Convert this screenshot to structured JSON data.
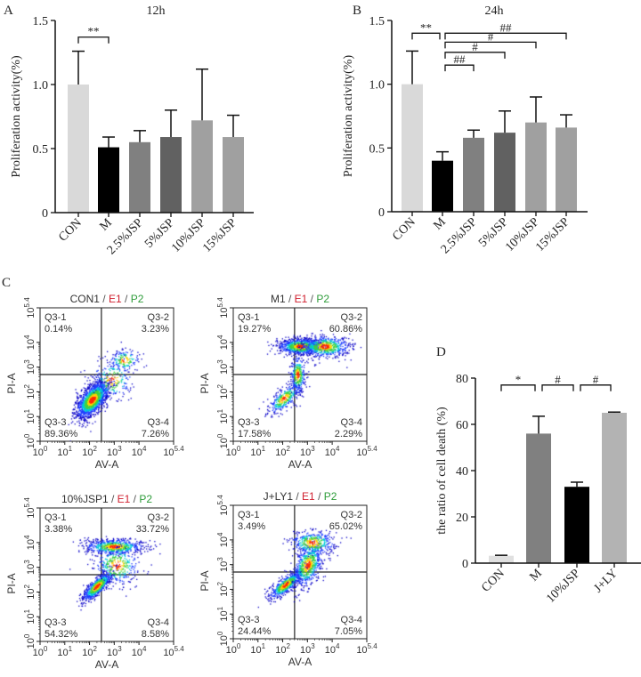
{
  "chart_data": [
    {
      "panel": "A",
      "type": "bar",
      "title": "12h",
      "ylabel": "Proliferation activity(%)",
      "ylim": [
        0,
        1.5
      ],
      "yticks": [
        "0",
        "0.5",
        "1.0",
        "1.5"
      ],
      "categories": [
        "CON",
        "M",
        "2.5%JSP",
        "5%JSP",
        "10%JSP",
        "15%JSP"
      ],
      "values": [
        1.0,
        0.51,
        0.55,
        0.59,
        0.72,
        0.59
      ],
      "error_upper": [
        1.26,
        0.59,
        0.64,
        0.8,
        1.12,
        0.76
      ],
      "colors": [
        "#d9d9d9",
        "#000000",
        "#808080",
        "#616161",
        "#a0a0a0",
        "#a0a0a0"
      ],
      "significance": [
        {
          "from": 0,
          "to": 1,
          "label": "**",
          "y": 1.37
        }
      ]
    },
    {
      "panel": "B",
      "type": "bar",
      "title": "24h",
      "ylabel": "Proliferation activity(%)",
      "ylim": [
        0,
        1.5
      ],
      "yticks": [
        "0",
        "0.5",
        "1.0",
        "1.5"
      ],
      "categories": [
        "CON",
        "M",
        "2.5%JSP",
        "5%JSP",
        "10%JSP",
        "15%JSP"
      ],
      "values": [
        1.0,
        0.4,
        0.58,
        0.62,
        0.7,
        0.66
      ],
      "error_upper": [
        1.26,
        0.47,
        0.64,
        0.79,
        0.9,
        0.76
      ],
      "colors": [
        "#d9d9d9",
        "#000000",
        "#808080",
        "#616161",
        "#a0a0a0",
        "#a0a0a0"
      ],
      "significance": [
        {
          "from": 0,
          "to": 1,
          "label": "**",
          "y": 1.4
        },
        {
          "from": 1,
          "to": 5,
          "label": "##",
          "y": 1.4
        },
        {
          "from": 1,
          "to": 4,
          "label": "#",
          "y": 1.33
        },
        {
          "from": 1,
          "to": 3,
          "label": "#",
          "y": 1.25
        },
        {
          "from": 1,
          "to": 2,
          "label": "##",
          "y": 1.15
        }
      ]
    },
    {
      "panel": "D",
      "type": "bar",
      "title": "",
      "ylabel": "the ratio of cell death (%)",
      "ylim": [
        0,
        80
      ],
      "yticks": [
        "0",
        "20",
        "40",
        "60",
        "80"
      ],
      "categories": [
        "CON",
        "M",
        "10%JSP",
        "J+LY"
      ],
      "values": [
        3.2,
        56,
        33,
        65
      ],
      "error_upper": [
        3.4,
        63.5,
        35,
        65.3
      ],
      "colors": [
        "#e0e0e0",
        "#808080",
        "#000000",
        "#b3b3b3"
      ],
      "significance": [
        {
          "from": 0,
          "to": 1,
          "label": "*",
          "y": 77
        },
        {
          "from": 1,
          "to": 2,
          "label": "#",
          "y": 77
        },
        {
          "from": 2,
          "to": 3,
          "label": "#",
          "y": 77
        }
      ]
    }
  ],
  "flow_panel": {
    "panel": "C",
    "xlabel": "AV-A",
    "ylabel": "PI-A",
    "ticks": [
      {
        "base": "10",
        "exp": "0"
      },
      {
        "base": "10",
        "exp": "1"
      },
      {
        "base": "10",
        "exp": "2"
      },
      {
        "base": "10",
        "exp": "3"
      },
      {
        "base": "10",
        "exp": "4"
      },
      {
        "base": "10",
        "exp": "5.4"
      }
    ],
    "title_colors": {
      "sample": "#333333",
      "E1": "#d0202f",
      "P2": "#2e9c3a"
    },
    "plots": [
      {
        "sample": "CON1",
        "gate1": "E1",
        "gate2": "P2",
        "quadrants": [
          {
            "name": "Q3-1",
            "pct": "0.14%"
          },
          {
            "name": "Q3-2",
            "pct": "3.23%"
          },
          {
            "name": "Q3-3",
            "pct": "89.36%"
          },
          {
            "name": "Q3-4",
            "pct": "7.26%"
          }
        ]
      },
      {
        "sample": "M1",
        "gate1": "E1",
        "gate2": "P2",
        "quadrants": [
          {
            "name": "Q3-1",
            "pct": "19.27%"
          },
          {
            "name": "Q3-2",
            "pct": "60.86%"
          },
          {
            "name": "Q3-3",
            "pct": "17.58%"
          },
          {
            "name": "Q3-4",
            "pct": "2.29%"
          }
        ]
      },
      {
        "sample": "10%JSP1",
        "gate1": "E1",
        "gate2": "P2",
        "quadrants": [
          {
            "name": "Q3-1",
            "pct": "3.38%"
          },
          {
            "name": "Q3-2",
            "pct": "33.72%"
          },
          {
            "name": "Q3-3",
            "pct": "54.32%"
          },
          {
            "name": "Q3-4",
            "pct": "8.58%"
          }
        ]
      },
      {
        "sample": "J+LY1",
        "gate1": "E1",
        "gate2": "P2",
        "quadrants": [
          {
            "name": "Q3-1",
            "pct": "3.49%"
          },
          {
            "name": "Q3-2",
            "pct": "65.02%"
          },
          {
            "name": "Q3-3",
            "pct": "24.44%"
          },
          {
            "name": "Q3-4",
            "pct": "7.05%"
          }
        ]
      }
    ]
  }
}
